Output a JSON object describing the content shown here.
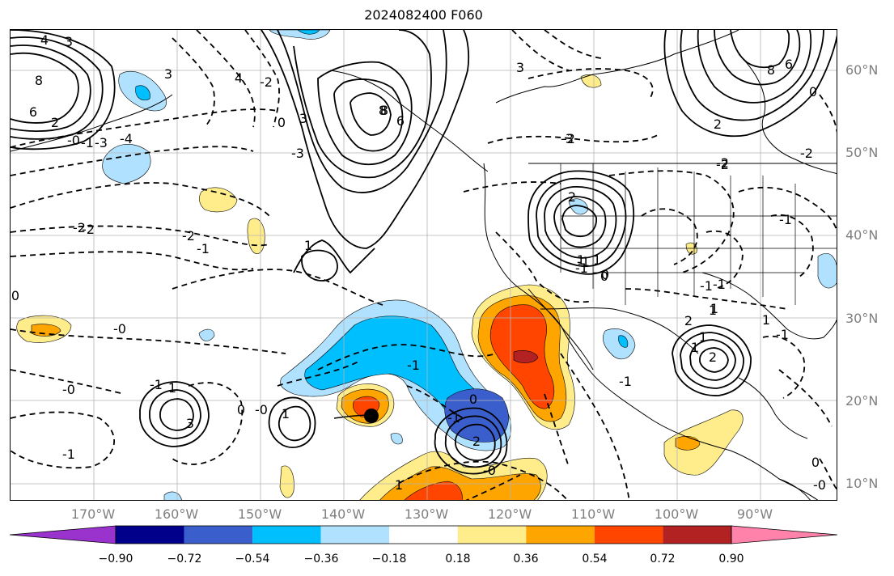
{
  "title": "2024082400 F060",
  "lat_labels": [
    "60°N",
    "50°N",
    "40°N",
    "30°N",
    "20°N",
    "10°N"
  ],
  "lon_labels": [
    "170°W",
    "160°W",
    "150°W",
    "140°W",
    "130°W",
    "120°W",
    "110°W",
    "100°W",
    "90°W"
  ],
  "colorbar": {
    "tick_labels": [
      "−0.90",
      "−0.72",
      "−0.54",
      "−0.36",
      "−0.18",
      "0.18",
      "0.36",
      "0.54",
      "0.72",
      "0.90"
    ],
    "colors": [
      "#9a32cd",
      "#00008b",
      "#3a5fcd",
      "#00bfff",
      "#b0e2ff",
      "#ffffff",
      "#ffec8b",
      "#ffa500",
      "#ff4500",
      "#b22222",
      "#ff82ab"
    ]
  },
  "contour_labels": [
    "4",
    "3",
    "8",
    "6",
    "2",
    "-0",
    "-1",
    "-3",
    "-4",
    "-2",
    "3",
    "8",
    "6",
    "3",
    "4",
    "-2",
    "-3",
    "-2",
    "-1",
    "-2",
    "-1",
    "1",
    "8",
    "3",
    "0",
    "-3",
    "1",
    "0",
    "-2",
    "-1",
    "1",
    "2",
    "1",
    "0",
    "-0",
    "-1",
    "-0",
    "-1",
    "1",
    "3",
    "0",
    "-0",
    "1",
    "0",
    "-1",
    "-0",
    "1",
    "-1",
    "0",
    "2",
    "-0",
    "1",
    "0",
    "1",
    "-1",
    "0",
    "2",
    "1",
    "2",
    "1",
    "2",
    "-2",
    "-1",
    "-1",
    "-2",
    "-1",
    "-2",
    "-1",
    "6",
    "8"
  ],
  "markers": [
    {
      "name": "storm-center",
      "color": "#000000"
    }
  ]
}
